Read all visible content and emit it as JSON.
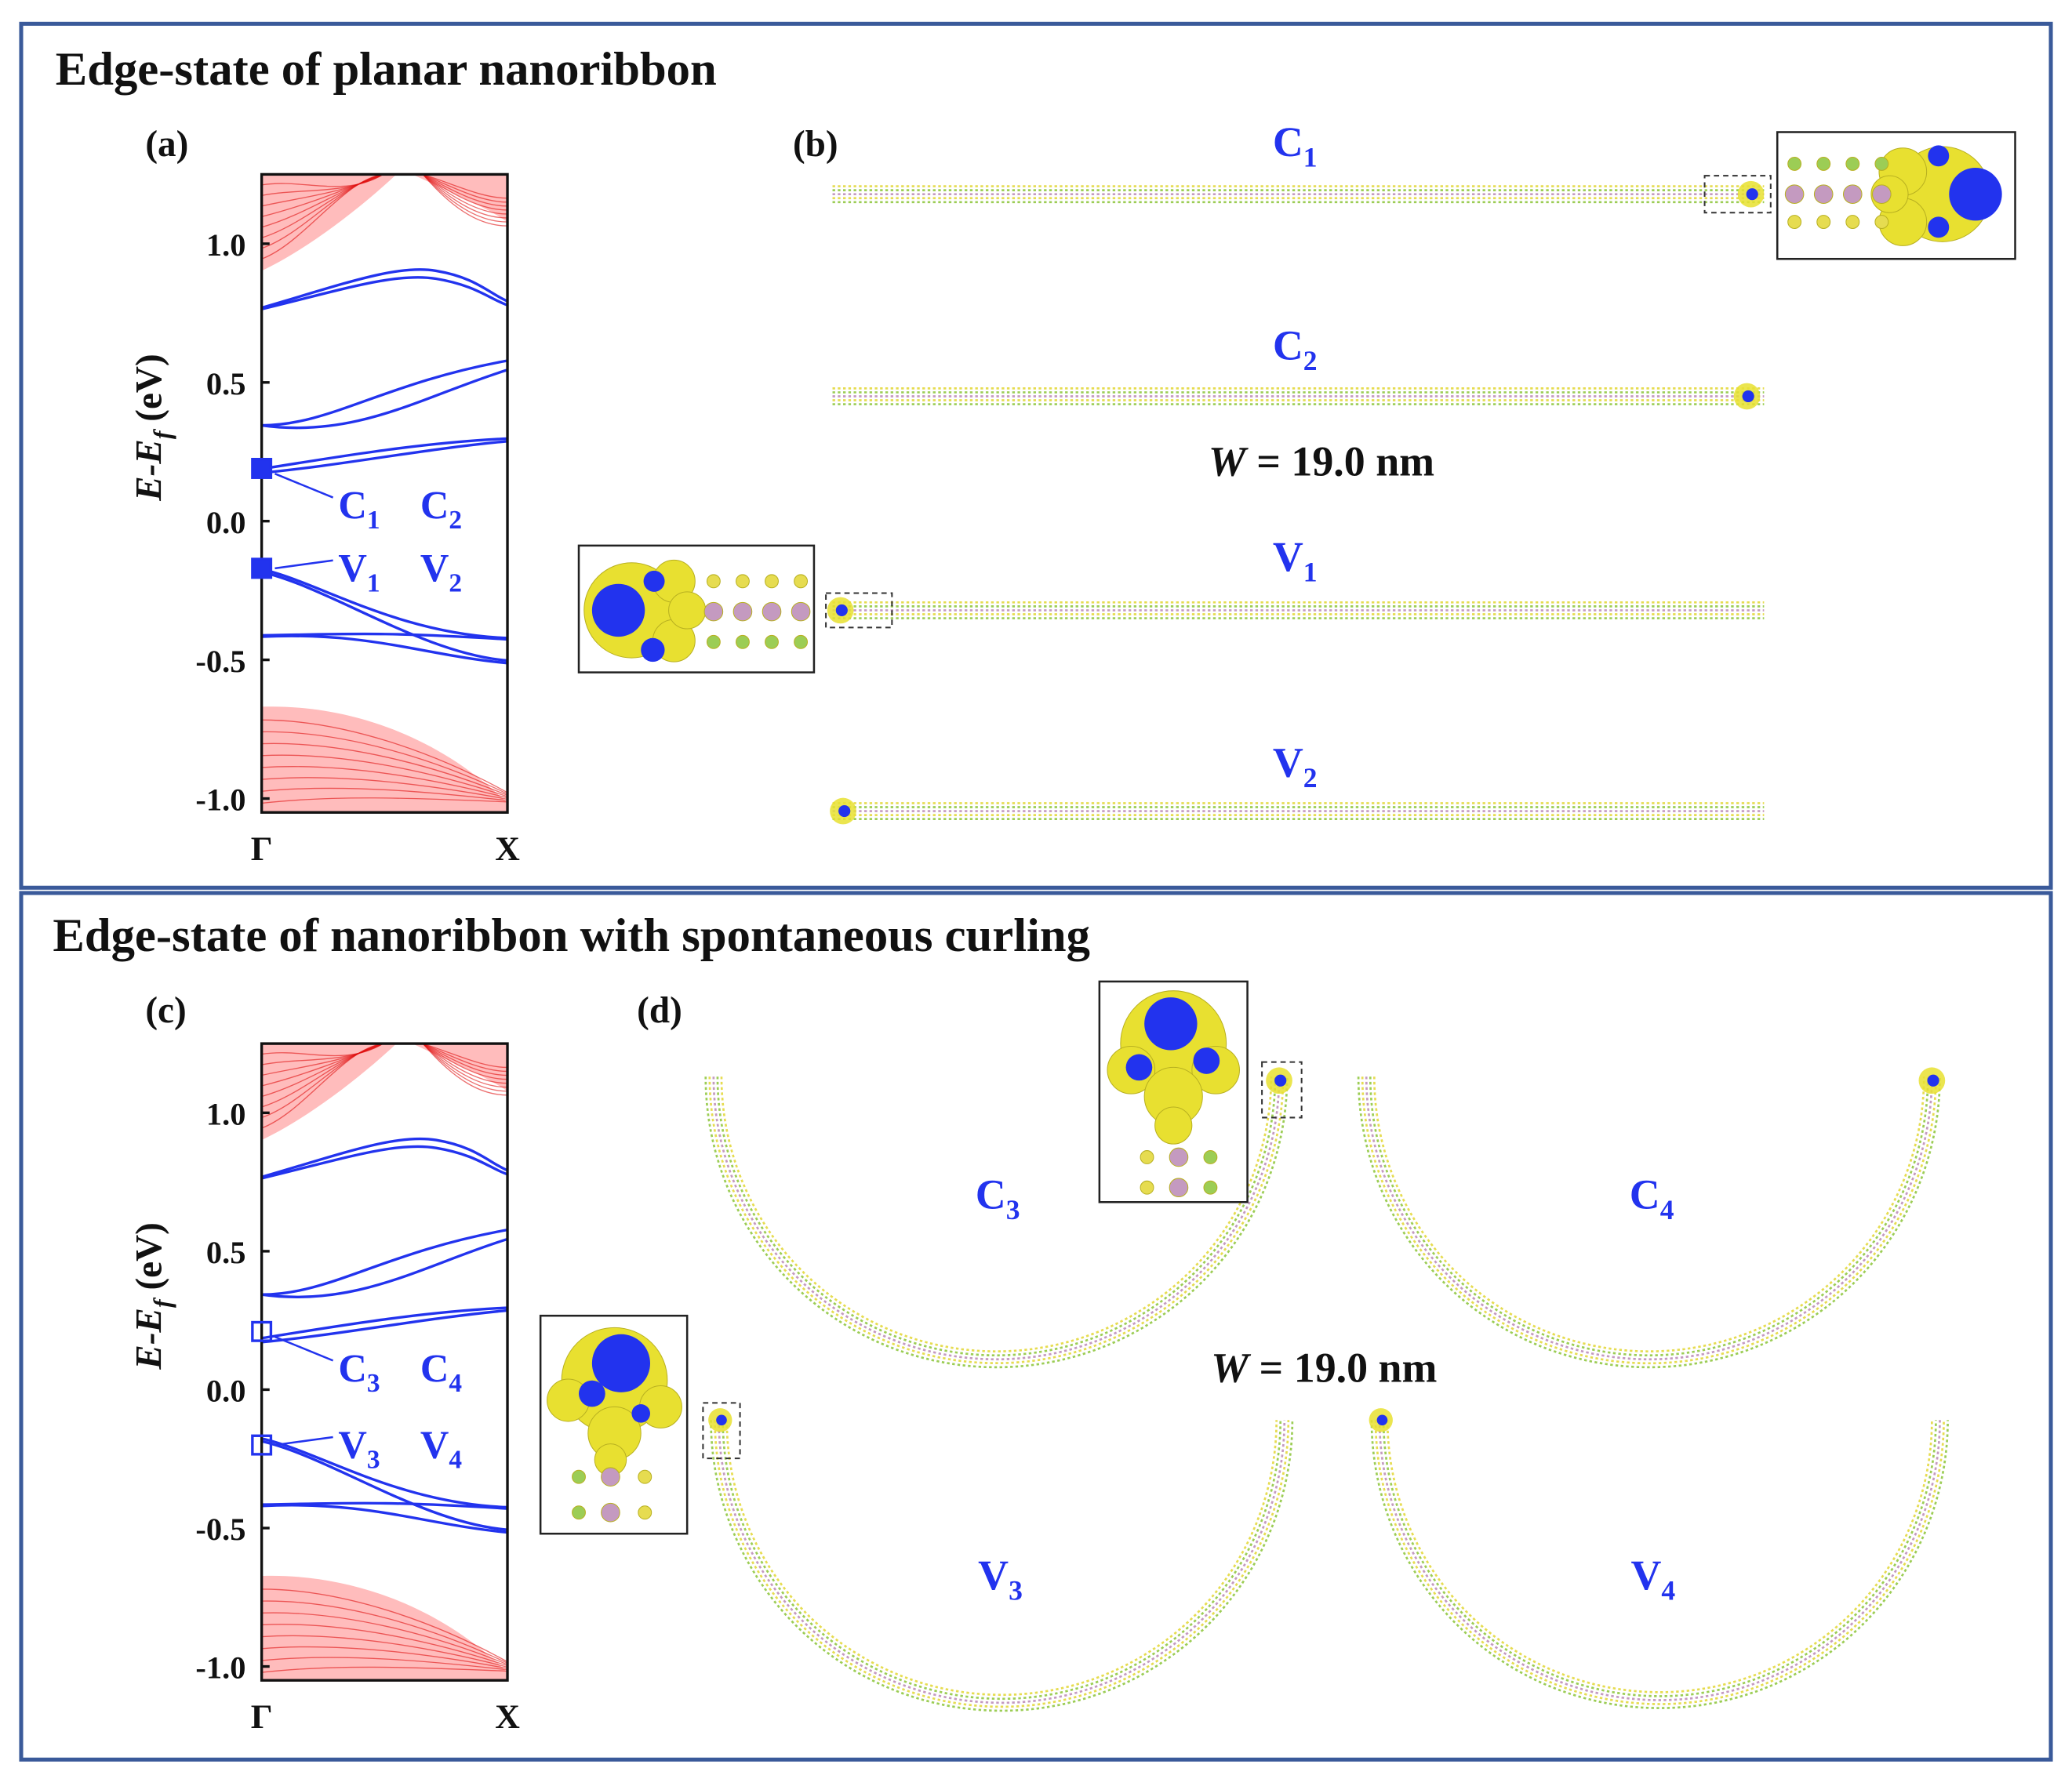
{
  "chart_data": [
    {
      "type": "band",
      "panel_label": "(a)",
      "ylabel": {
        "main": "E-E",
        "sub": "f",
        "unit": " (eV)"
      },
      "categories": [
        "Γ",
        "X"
      ],
      "ylim": [
        -1.05,
        1.25
      ],
      "yticks": [
        {
          "value": -1.0,
          "label": "-1.0"
        },
        {
          "value": -0.5,
          "label": "-0.5"
        },
        {
          "value": 0.0,
          "label": "0.0"
        },
        {
          "value": 0.5,
          "label": "0.5"
        },
        {
          "value": 1.0,
          "label": "1.0"
        }
      ],
      "markers": [
        0.19,
        -0.17
      ],
      "marker_style": "filled",
      "state_labels": [
        {
          "main": "C",
          "sub": "1"
        },
        {
          "main": "C",
          "sub": "2"
        },
        {
          "main": "V",
          "sub": "1"
        },
        {
          "main": "V",
          "sub": "2"
        }
      ]
    },
    {
      "type": "band",
      "panel_label": "(c)",
      "ylabel": {
        "main": "E-E",
        "sub": "f",
        "unit": " (eV)"
      },
      "categories": [
        "Γ",
        "X"
      ],
      "ylim": [
        -1.05,
        1.25
      ],
      "yticks": [
        {
          "value": -1.0,
          "label": "-1.0"
        },
        {
          "value": -0.5,
          "label": "-0.5"
        },
        {
          "value": 0.0,
          "label": "0.0"
        },
        {
          "value": 0.5,
          "label": "0.5"
        },
        {
          "value": 1.0,
          "label": "1.0"
        }
      ],
      "markers": [
        0.21,
        -0.2
      ],
      "marker_style": "open",
      "state_labels": [
        {
          "main": "C",
          "sub": "3"
        },
        {
          "main": "C",
          "sub": "4"
        },
        {
          "main": "V",
          "sub": "3"
        },
        {
          "main": "V",
          "sub": "4"
        }
      ]
    }
  ],
  "sections": [
    {
      "title": "Edge-state of planar nanoribbon",
      "panel_label": "(b)",
      "width_label": {
        "var": "W",
        "rest": " = 19.0 nm"
      },
      "states": [
        {
          "main": "C",
          "sub": "1"
        },
        {
          "main": "C",
          "sub": "2"
        },
        {
          "main": "V",
          "sub": "1"
        },
        {
          "main": "V",
          "sub": "2"
        }
      ]
    },
    {
      "title": "Edge-state of nanoribbon with spontaneous curling",
      "panel_label": "(d)",
      "width_label": {
        "var": "W",
        "rest": " = 19.0 nm"
      },
      "states": [
        {
          "main": "C",
          "sub": "3"
        },
        {
          "main": "C",
          "sub": "4"
        },
        {
          "main": "V",
          "sub": "3"
        },
        {
          "main": "V",
          "sub": "4"
        }
      ]
    }
  ]
}
